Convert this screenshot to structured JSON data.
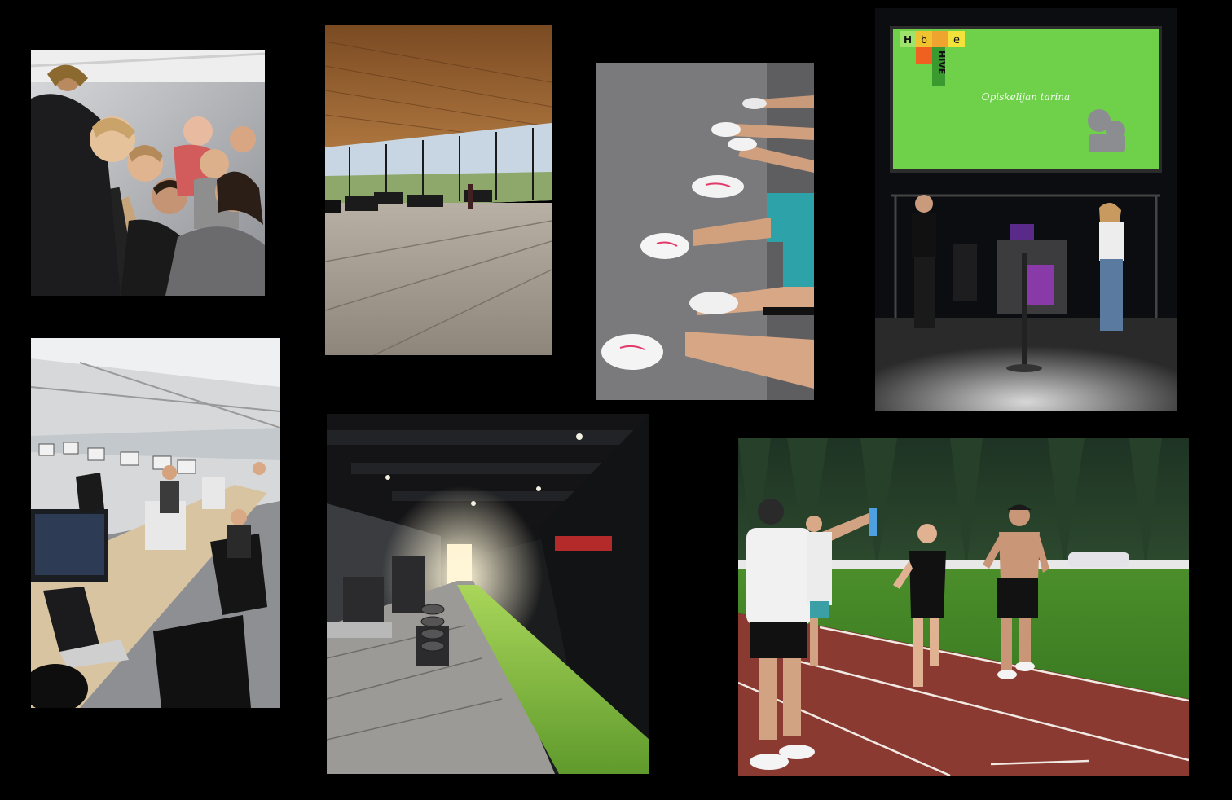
{
  "photos": [
    {
      "id": "p1",
      "name": "photo-group-at-computer"
    },
    {
      "id": "p2",
      "name": "photo-glass-lobby"
    },
    {
      "id": "p3",
      "name": "photo-running-shoes"
    },
    {
      "id": "p4",
      "name": "photo-stage-presentation"
    },
    {
      "id": "p5",
      "name": "photo-computer-lab"
    },
    {
      "id": "p6",
      "name": "photo-gym-hallway"
    },
    {
      "id": "p7",
      "name": "photo-running-track"
    }
  ],
  "stage": {
    "logo_letters": [
      "H",
      "b",
      "e"
    ],
    "logo_word": "HIVE",
    "screen_caption": "Opiskelijan tarina"
  },
  "colors": {
    "background": "#000000",
    "stage_screen": "#6fd14a",
    "turf": "#7cbf3a",
    "track": "#8a3a30"
  }
}
